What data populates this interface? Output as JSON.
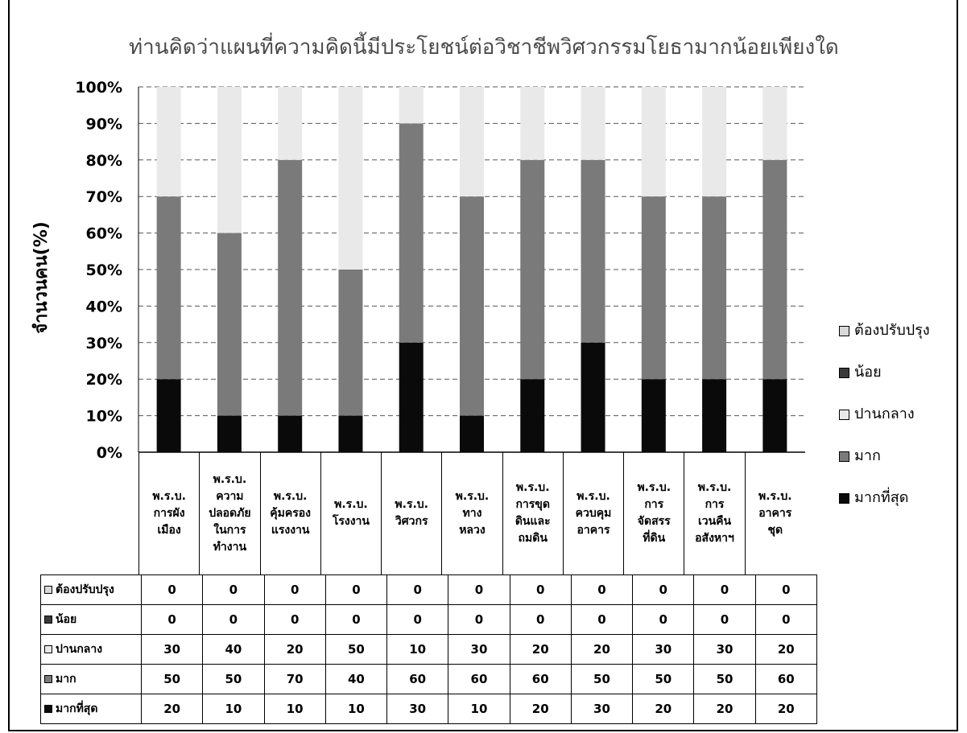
{
  "chart_data": {
    "type": "bar",
    "stacked": true,
    "title": "ท่านคิดว่าแผนที่ความคิดนี้มีประโยชน์ต่อวิชาชีพวิศวกรรมโยธามากน้อยเพียงใด",
    "ylabel": "จำนวนคน(%)",
    "xlabel": "",
    "ylim": [
      0,
      100
    ],
    "yticks": [
      "0%",
      "10%",
      "20%",
      "30%",
      "40%",
      "50%",
      "60%",
      "70%",
      "80%",
      "90%",
      "100%"
    ],
    "grid": true,
    "legend_position": "right",
    "categories": [
      "พ.ร.บ.\nการผัง\nเมือง",
      "พ.ร.บ.\nความ\nปลอดภัย\nในการ\nทำงาน",
      "พ.ร.บ.\nคุ้มครอง\nแรงงาน",
      "พ.ร.บ.\nโรงงาน",
      "พ.ร.บ.\nวิศวกร",
      "พ.ร.บ.\nทาง\nหลวง",
      "พ.ร.บ.\nการขุด\nดินและ\nถมดิน",
      "พ.ร.บ.\nควบคุม\nอาคาร",
      "พ.ร.บ.\nการ\nจัดสรร\nที่ดิน",
      "พ.ร.บ.\nการ\nเวนคืน\nอสังหาฯ",
      "พ.ร.บ.\nอาคาร\nชุด"
    ],
    "series": [
      {
        "name": "ต้องปรับปรุง",
        "values": [
          0,
          0,
          0,
          0,
          0,
          0,
          0,
          0,
          0,
          0,
          0
        ],
        "color": "#d9d9d9"
      },
      {
        "name": "น้อย",
        "values": [
          0,
          0,
          0,
          0,
          0,
          0,
          0,
          0,
          0,
          0,
          0
        ],
        "color": "#3a3a3a"
      },
      {
        "name": "ปานกลาง",
        "values": [
          30,
          40,
          20,
          50,
          10,
          30,
          20,
          20,
          30,
          30,
          20
        ],
        "color": "#e9e9e9"
      },
      {
        "name": "มาก",
        "values": [
          50,
          50,
          70,
          40,
          60,
          60,
          60,
          50,
          50,
          50,
          60
        ],
        "color": "#7a7a7a"
      },
      {
        "name": "มากที่สุด",
        "values": [
          20,
          10,
          10,
          10,
          30,
          10,
          20,
          30,
          20,
          20,
          20
        ],
        "color": "#0a0a0a"
      }
    ]
  }
}
